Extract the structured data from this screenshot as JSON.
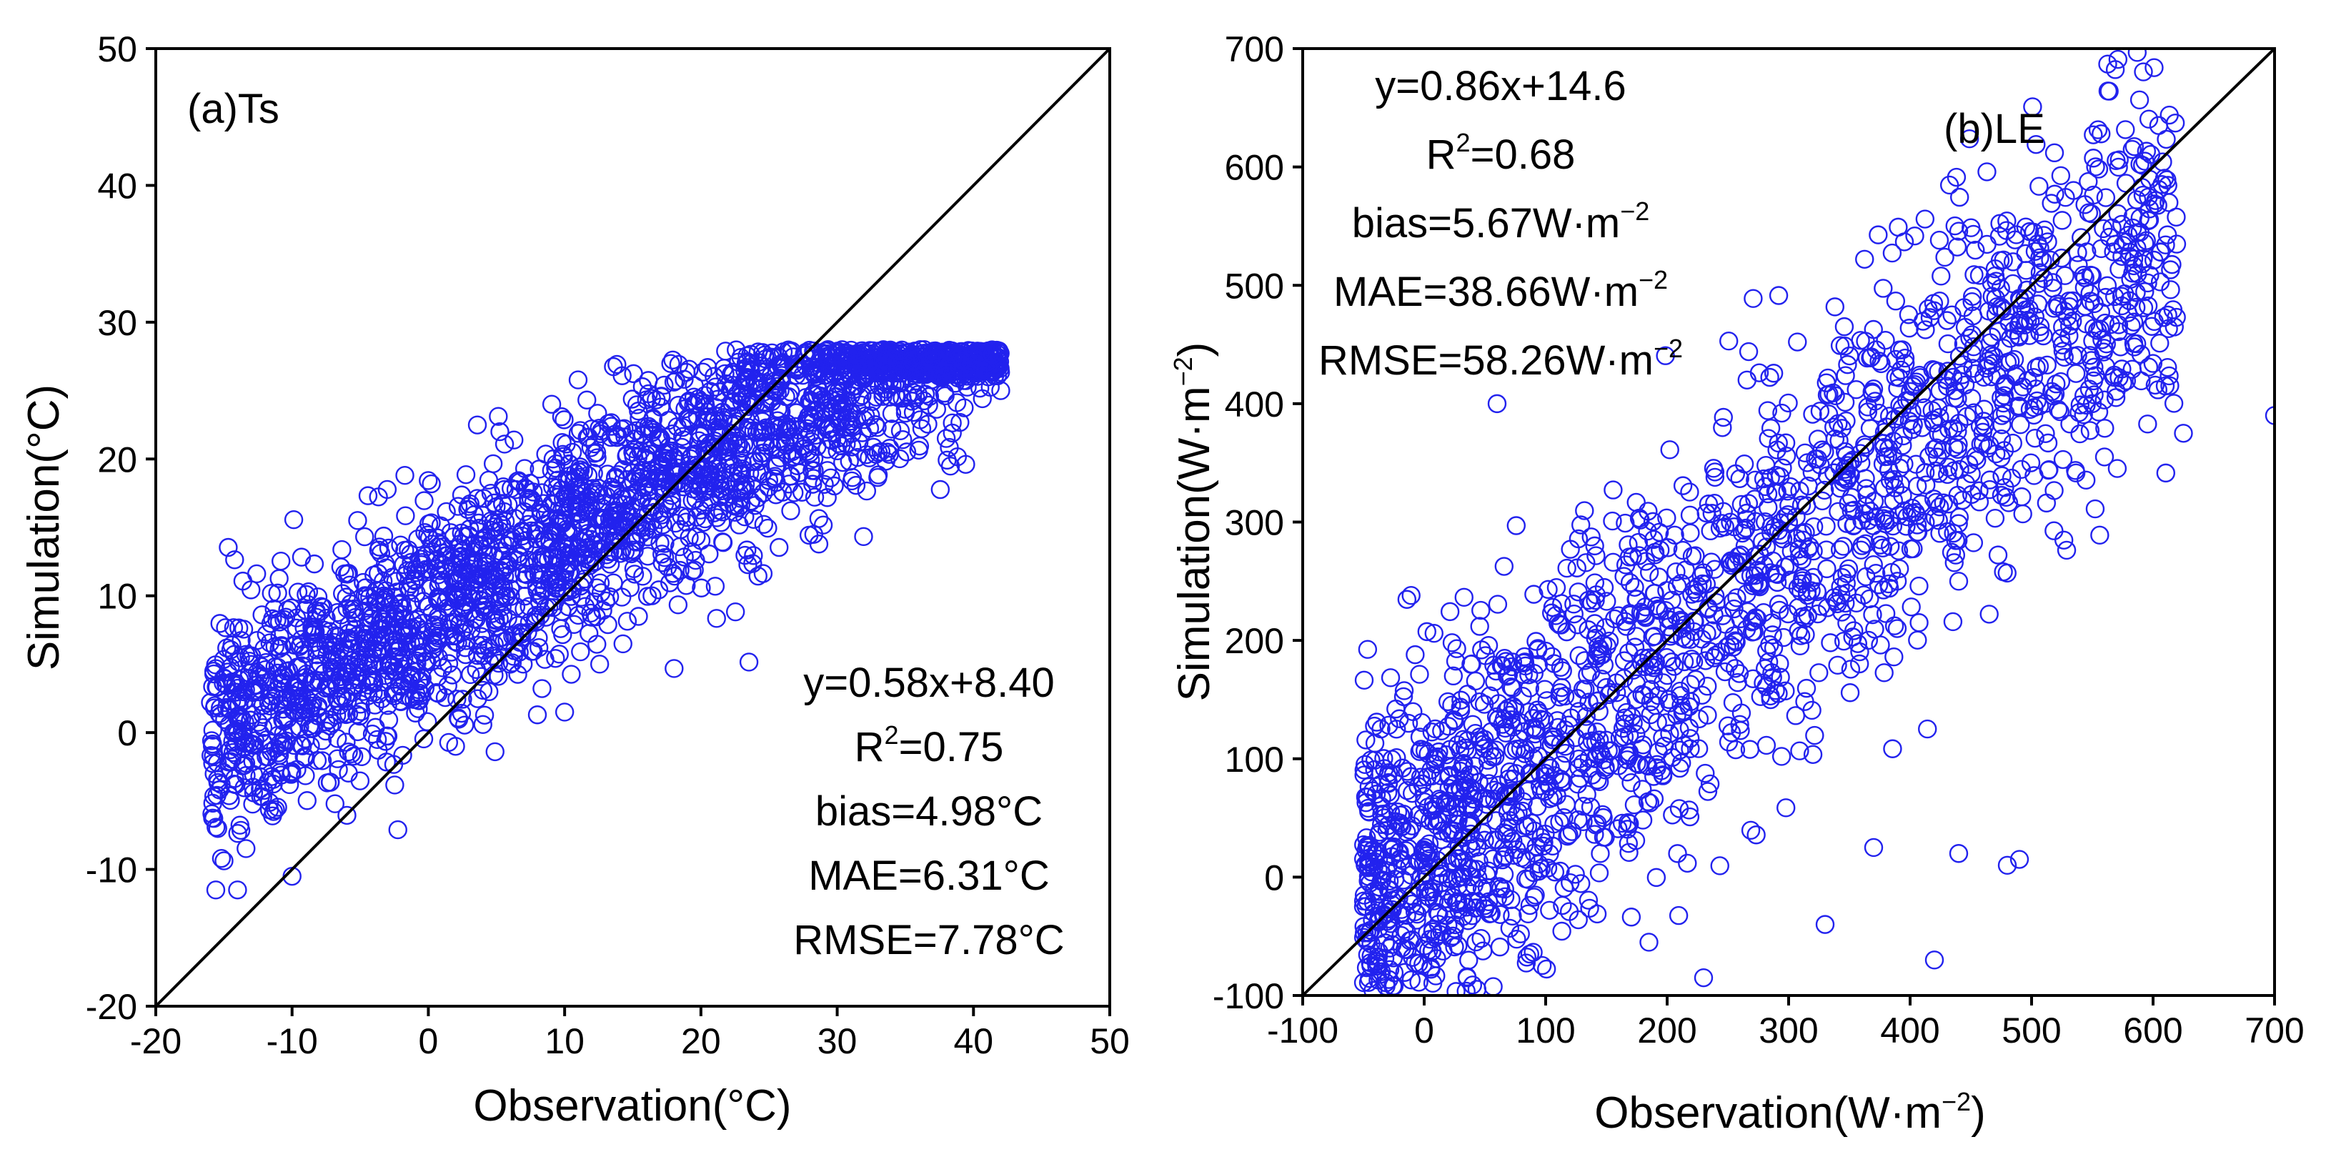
{
  "chart_data": [
    {
      "type": "scatter",
      "panel_label": "(a)Ts",
      "xlabel": "Observation(°C)",
      "ylabel": "Simulation(°C)",
      "xlim": [
        -20,
        50
      ],
      "ylim": [
        -20,
        50
      ],
      "xticks": [
        "-20",
        "-10",
        "0",
        "10",
        "20",
        "30",
        "40",
        "50"
      ],
      "yticks": [
        "-20",
        "-10",
        "0",
        "10",
        "20",
        "30",
        "40",
        "50"
      ],
      "reference_line": "1:1",
      "marker_color": "#2222ee",
      "stats": {
        "equation": "y=0.58x+8.40",
        "r2_prefix": "R",
        "r2_sup": "2",
        "r2_value": "=0.75",
        "bias": "bias=4.98°C",
        "mae": "MAE=6.31°C",
        "rmse": "RMSE=7.78°C"
      },
      "fit": {
        "slope": 0.58,
        "intercept": 8.4,
        "x_range": [
          -16,
          42
        ]
      },
      "outliers": [
        [
          -14,
          -11.5
        ],
        [
          -10,
          -10.5
        ],
        [
          10,
          1.5
        ],
        [
          8,
          1.3
        ],
        [
          2,
          -1
        ],
        [
          30,
          21.5
        ],
        [
          38,
          21.5
        ],
        [
          42,
          25
        ]
      ]
    },
    {
      "type": "scatter",
      "panel_label": "(b)LE",
      "xlabel_main": "Observation(W·m",
      "xlabel_sup": "−2",
      "xlabel_end": ")",
      "ylabel_main": "Simulation(W·m",
      "ylabel_sup": "−2",
      "ylabel_end": ")",
      "xlim": [
        -100,
        700
      ],
      "ylim": [
        -100,
        700
      ],
      "xticks": [
        "-100",
        "0",
        "100",
        "200",
        "300",
        "400",
        "500",
        "600",
        "700"
      ],
      "yticks": [
        "-100",
        "0",
        "100",
        "200",
        "300",
        "400",
        "500",
        "600",
        "700"
      ],
      "reference_line": "1:1",
      "marker_color": "#2222ee",
      "stats": {
        "equation": "y=0.86x+14.6",
        "r2_prefix": "R",
        "r2_sup": "2",
        "r2_value": "=0.68",
        "bias_main": "bias=5.67W·m",
        "bias_sup": "−2",
        "mae_main": "MAE=38.66W·m",
        "mae_sup": "−2",
        "rmse_main": "RMSE=58.26W·m",
        "rmse_sup": "−2"
      },
      "fit": {
        "slope": 0.86,
        "intercept": 14.6,
        "x_range": [
          -50,
          620
        ]
      },
      "outliers": [
        [
          610,
          415
        ],
        [
          625,
          375
        ],
        [
          700,
          390
        ],
        [
          560,
          355
        ],
        [
          440,
          250
        ],
        [
          420,
          -70
        ],
        [
          330,
          -40
        ],
        [
          230,
          -85
        ],
        [
          185,
          -55
        ],
        [
          550,
          400
        ],
        [
          480,
          10
        ],
        [
          490,
          15
        ],
        [
          370,
          25
        ],
        [
          440,
          20
        ],
        [
          60,
          400
        ]
      ]
    }
  ]
}
